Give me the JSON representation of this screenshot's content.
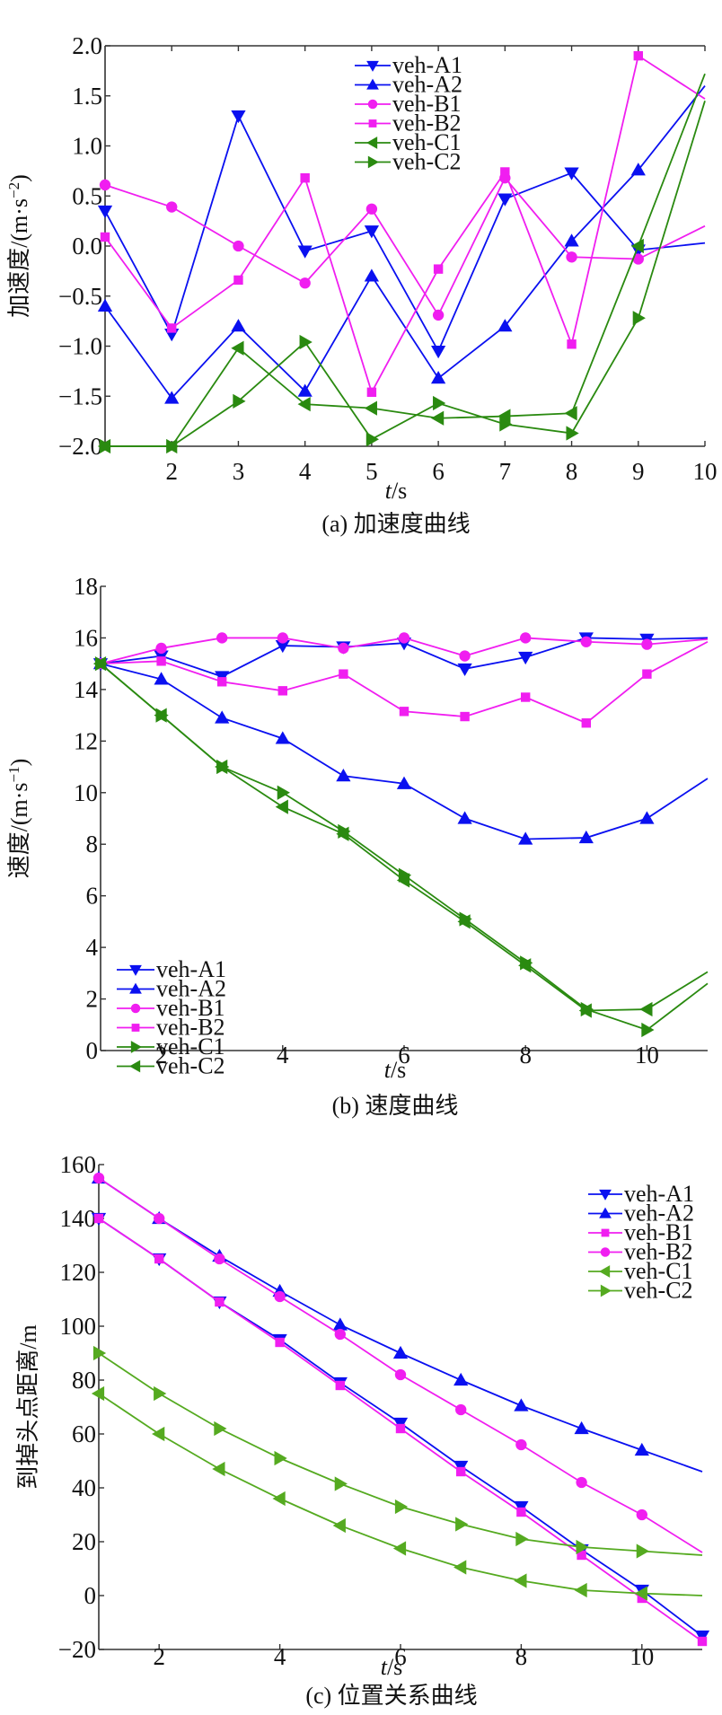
{
  "chart_data": [
    {
      "id": "a",
      "type": "line",
      "caption": "(a) 加速度曲线",
      "xlabel_italic": "t",
      "xlabel_unit": "/s",
      "ylabel": "加速度/(m·s",
      "ylabel_sup": "−2",
      "ylabel_close": ")",
      "xlim": [
        1,
        10
      ],
      "ylim": [
        -2,
        2
      ],
      "xticks": [
        2,
        3,
        4,
        5,
        6,
        7,
        8,
        9,
        10
      ],
      "xtick_labels": [
        "2",
        "3",
        "4",
        "5",
        "6",
        "7",
        "8",
        "9",
        "10"
      ],
      "yticks": [
        -2,
        -1.5,
        -1,
        -0.5,
        0,
        0.5,
        1,
        1.5,
        2
      ],
      "ytick_labels": [
        "−2.0",
        "−1.5",
        "−1.0",
        "−0.5",
        "0.0",
        "0.5",
        "1.0",
        "1.5",
        "2.0"
      ],
      "top_border": true,
      "legend_position": "top-center",
      "x": [
        1,
        2,
        3,
        4,
        5,
        6,
        7,
        8,
        9,
        10
      ],
      "series": [
        {
          "name": "veh-A1",
          "color": "#0a10f0",
          "marker": "triangle-down",
          "values": [
            0.35,
            -0.88,
            1.3,
            -0.05,
            0.15,
            -1.05,
            0.47,
            0.73,
            -0.04,
            0.03
          ]
        },
        {
          "name": "veh-A2",
          "color": "#0a10f0",
          "marker": "triangle-up",
          "values": [
            -0.6,
            -1.52,
            -0.8,
            -1.45,
            -0.3,
            -1.32,
            -0.8,
            0.05,
            0.76,
            1.6
          ]
        },
        {
          "name": "veh-B1",
          "color": "#f01ef0",
          "marker": "circle",
          "values": [
            0.61,
            0.39,
            0.0,
            -0.37,
            0.37,
            -0.69,
            0.68,
            -0.11,
            -0.13,
            0.2
          ]
        },
        {
          "name": "veh-B2",
          "color": "#f01ef0",
          "marker": "square",
          "values": [
            0.09,
            -0.82,
            -0.34,
            0.68,
            -1.46,
            -0.23,
            0.74,
            -0.98,
            1.9,
            1.47
          ]
        },
        {
          "name": "veh-C1",
          "color": "#2a8a10",
          "marker": "triangle-left",
          "values": [
            -2.0,
            -2.0,
            -1.02,
            -1.58,
            -1.62,
            -1.72,
            -1.7,
            -1.67,
            0.0,
            1.72
          ]
        },
        {
          "name": "veh-C2",
          "color": "#2a8a10",
          "marker": "triangle-right",
          "values": [
            -2.0,
            -2.0,
            -1.55,
            -0.96,
            -1.93,
            -1.57,
            -1.78,
            -1.87,
            -0.72,
            1.45
          ]
        }
      ]
    },
    {
      "id": "b",
      "type": "line",
      "caption": "(b) 速度曲线",
      "xlabel_italic": "t",
      "xlabel_unit": "/s",
      "ylabel": "速度/(m·s",
      "ylabel_sup": "−1",
      "ylabel_close": ")",
      "xlim": [
        1,
        11
      ],
      "ylim": [
        0,
        18
      ],
      "xticks": [
        2,
        4,
        6,
        8,
        10
      ],
      "xtick_labels": [
        "2",
        "4",
        "6",
        "8",
        "10"
      ],
      "yticks": [
        0,
        2,
        4,
        6,
        8,
        10,
        12,
        14,
        16,
        18
      ],
      "ytick_labels": [
        "0",
        "2",
        "4",
        "6",
        "8",
        "10",
        "12",
        "14",
        "16",
        "18"
      ],
      "top_border": false,
      "legend_position": "bottom-left",
      "x": [
        1,
        2,
        3,
        4,
        5,
        6,
        7,
        8,
        9,
        10,
        11
      ],
      "series": [
        {
          "name": "veh-A1",
          "color": "#0a10f0",
          "marker": "triangle-down",
          "values": [
            15,
            15.3,
            14.5,
            15.7,
            15.65,
            15.8,
            14.8,
            15.25,
            16,
            15.95,
            16
          ]
        },
        {
          "name": "veh-A2",
          "color": "#0a10f0",
          "marker": "triangle-up",
          "values": [
            15,
            14.4,
            12.9,
            12.1,
            10.65,
            10.35,
            9.0,
            8.2,
            8.25,
            9.0,
            10.55
          ]
        },
        {
          "name": "veh-B1",
          "color": "#f01ef0",
          "marker": "circle",
          "values": [
            15,
            15.6,
            16,
            16,
            15.6,
            16,
            15.3,
            16,
            15.85,
            15.75,
            15.95
          ]
        },
        {
          "name": "veh-B2",
          "color": "#f01ef0",
          "marker": "square",
          "values": [
            15,
            15.1,
            14.3,
            13.95,
            14.6,
            13.15,
            12.95,
            13.7,
            12.7,
            14.6,
            15.85
          ]
        },
        {
          "name": "veh-C1",
          "color": "#2a8a10",
          "marker": "triangle-right",
          "values": [
            15,
            13,
            11,
            10,
            8.5,
            6.8,
            5.1,
            3.4,
            1.6,
            0.8,
            2.6
          ]
        },
        {
          "name": "veh-C2",
          "color": "#2a8a10",
          "marker": "triangle-left",
          "values": [
            15,
            13,
            11,
            9.45,
            8.4,
            6.6,
            5.0,
            3.3,
            1.55,
            1.6,
            3.05
          ]
        }
      ]
    },
    {
      "id": "c",
      "type": "line",
      "caption": "(c) 位置关系曲线",
      "xlabel_italic": "t",
      "xlabel_unit": "/s",
      "ylabel": "到掉头点距离/m",
      "ylabel_sup": "",
      "ylabel_close": "",
      "xlim": [
        1,
        11
      ],
      "ylim": [
        -20,
        160
      ],
      "xticks": [
        2,
        4,
        6,
        8,
        10
      ],
      "xtick_labels": [
        "2",
        "4",
        "6",
        "8",
        "10"
      ],
      "yticks": [
        -20,
        0,
        20,
        40,
        60,
        80,
        100,
        120,
        140,
        160
      ],
      "ytick_labels": [
        "−20",
        "0",
        "20",
        "40",
        "60",
        "80",
        "100",
        "120",
        "140",
        "160"
      ],
      "top_border": false,
      "legend_position": "top-right",
      "x": [
        1,
        2,
        3,
        4,
        5,
        6,
        7,
        8,
        9,
        10,
        11
      ],
      "series": [
        {
          "name": "veh-A1",
          "color": "#0a10f0",
          "marker": "triangle-down",
          "values": [
            140,
            125,
            109,
            95,
            79,
            64,
            48,
            33,
            17,
            2,
            -15
          ]
        },
        {
          "name": "veh-A2",
          "color": "#0a10f0",
          "marker": "triangle-up",
          "values": [
            155,
            140,
            126,
            113,
            100.5,
            90,
            80,
            70.5,
            62,
            54,
            46
          ]
        },
        {
          "name": "veh-B1",
          "color": "#f01ef0",
          "marker": "square",
          "values": [
            140,
            125,
            109,
            94,
            78,
            62,
            46,
            31,
            15,
            -1,
            -17
          ]
        },
        {
          "name": "veh-B2",
          "color": "#f01ef0",
          "marker": "circle",
          "values": [
            155,
            140,
            125,
            111,
            97,
            82,
            69,
            56,
            42,
            30,
            16
          ]
        },
        {
          "name": "veh-C1",
          "color": "#55aa20",
          "marker": "triangle-left",
          "values": [
            75,
            60,
            47,
            36,
            26,
            17.5,
            10.5,
            5.5,
            2,
            0.8,
            0
          ]
        },
        {
          "name": "veh-C2",
          "color": "#55aa20",
          "marker": "triangle-right",
          "values": [
            90,
            75,
            62,
            51,
            41.5,
            33,
            26.5,
            21,
            18,
            16.5,
            15
          ]
        }
      ]
    }
  ]
}
